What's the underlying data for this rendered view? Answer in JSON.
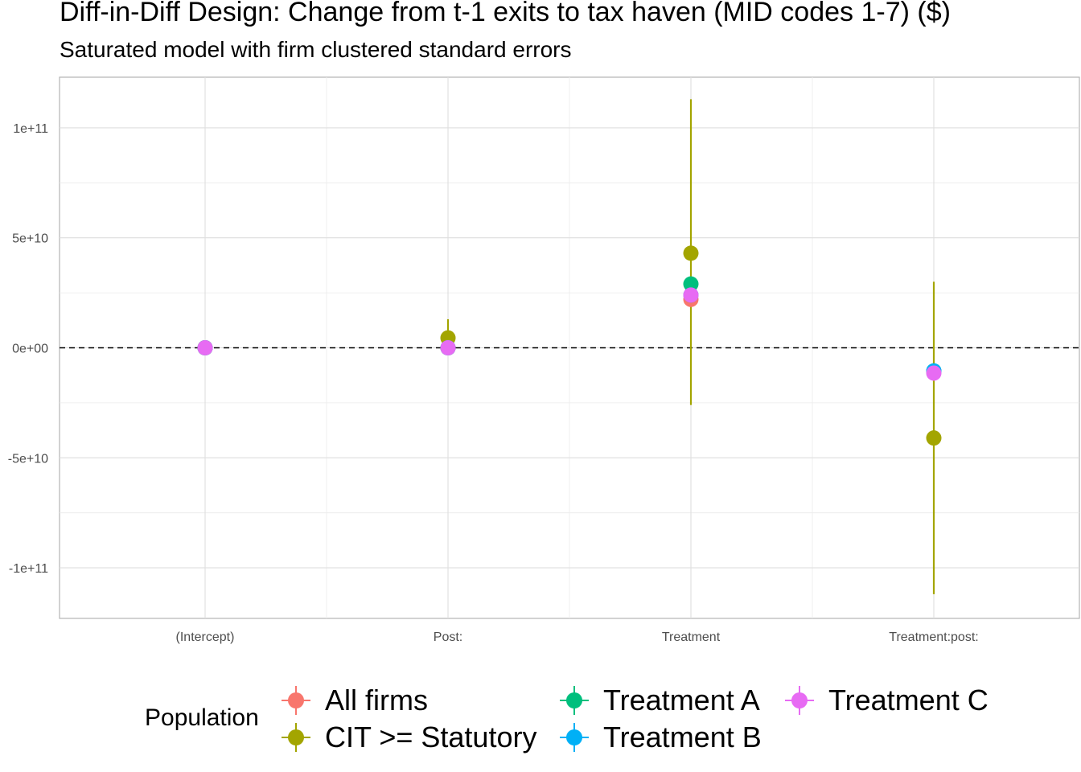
{
  "chart_data": {
    "type": "scatter",
    "title": "Diff-in-Diff Design: Change from t-1 exits to tax haven (MID codes 1-7)  ($)",
    "subtitle": "Saturated model with firm clustered standard errors",
    "categories": [
      "(Intercept)",
      "Post:",
      "Treatment",
      "Treatment:post:"
    ],
    "ylim": [
      -123000000000,
      123000000000
    ],
    "y_ticks": [
      -100000000000,
      -50000000000,
      0,
      50000000000,
      100000000000
    ],
    "y_tick_labels": [
      "-1e+11",
      "-5e+10",
      "0e+00",
      "5e+10",
      "1e+11"
    ],
    "reference_line": 0,
    "grid": true,
    "legend_position": "bottom",
    "legend_title": "Population",
    "series": [
      {
        "name": "All firms",
        "color": "#F8766D",
        "values": [
          0,
          0,
          22000000000,
          -11000000000
        ],
        "lower": [
          null,
          null,
          null,
          null
        ],
        "upper": [
          null,
          null,
          null,
          null
        ]
      },
      {
        "name": "CIT >= Statutory",
        "color": "#A3A500",
        "values": [
          0,
          4500000000,
          43000000000,
          -41000000000
        ],
        "lower": [
          null,
          -400000000,
          -26000000000,
          -112000000000
        ],
        "upper": [
          null,
          13000000000,
          113000000000,
          30000000000
        ]
      },
      {
        "name": "Treatment A",
        "color": "#00BF7D",
        "values": [
          0,
          0,
          29000000000,
          -10500000000
        ],
        "lower": [
          null,
          null,
          null,
          null
        ],
        "upper": [
          null,
          null,
          null,
          null
        ]
      },
      {
        "name": "Treatment B",
        "color": "#00B0F6",
        "values": [
          0,
          0,
          24000000000,
          -10500000000
        ],
        "lower": [
          null,
          null,
          null,
          null
        ],
        "upper": [
          null,
          null,
          null,
          null
        ]
      },
      {
        "name": "Treatment C",
        "color": "#E76BF3",
        "values": [
          0,
          0,
          24000000000,
          -11500000000
        ],
        "lower": [
          null,
          null,
          null,
          null
        ],
        "upper": [
          null,
          null,
          null,
          null
        ]
      }
    ]
  }
}
